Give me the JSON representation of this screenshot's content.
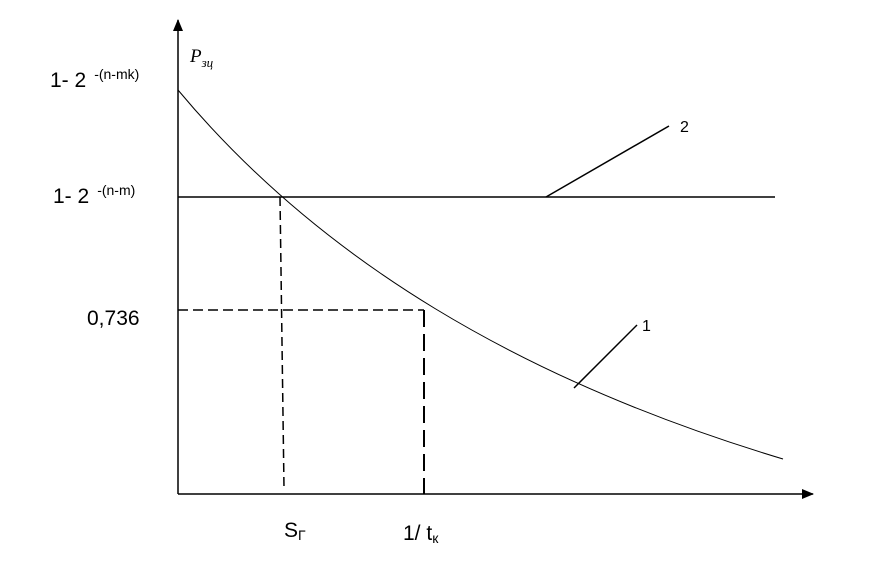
{
  "chart_data": {
    "type": "line",
    "title": "",
    "ylabel": {
      "symbol": "P",
      "subscript": "зц"
    },
    "xlabel": "",
    "y_ticks": [
      {
        "base": "1- 2",
        "sup": "-(n-mk)"
      },
      {
        "base": "1- 2",
        "sup": "-(n-m)"
      },
      {
        "base": "0,736",
        "sup": ""
      }
    ],
    "x_ticks": [
      {
        "base": "S",
        "sub": "Г"
      },
      {
        "base": "1/ t",
        "sub": "к"
      }
    ],
    "series": [
      {
        "name": "1",
        "kind": "decreasing-curve"
      },
      {
        "name": "2",
        "kind": "horizontal-line"
      }
    ],
    "grid": false,
    "colors": {
      "line": "#000000",
      "background": "#ffffff"
    }
  }
}
